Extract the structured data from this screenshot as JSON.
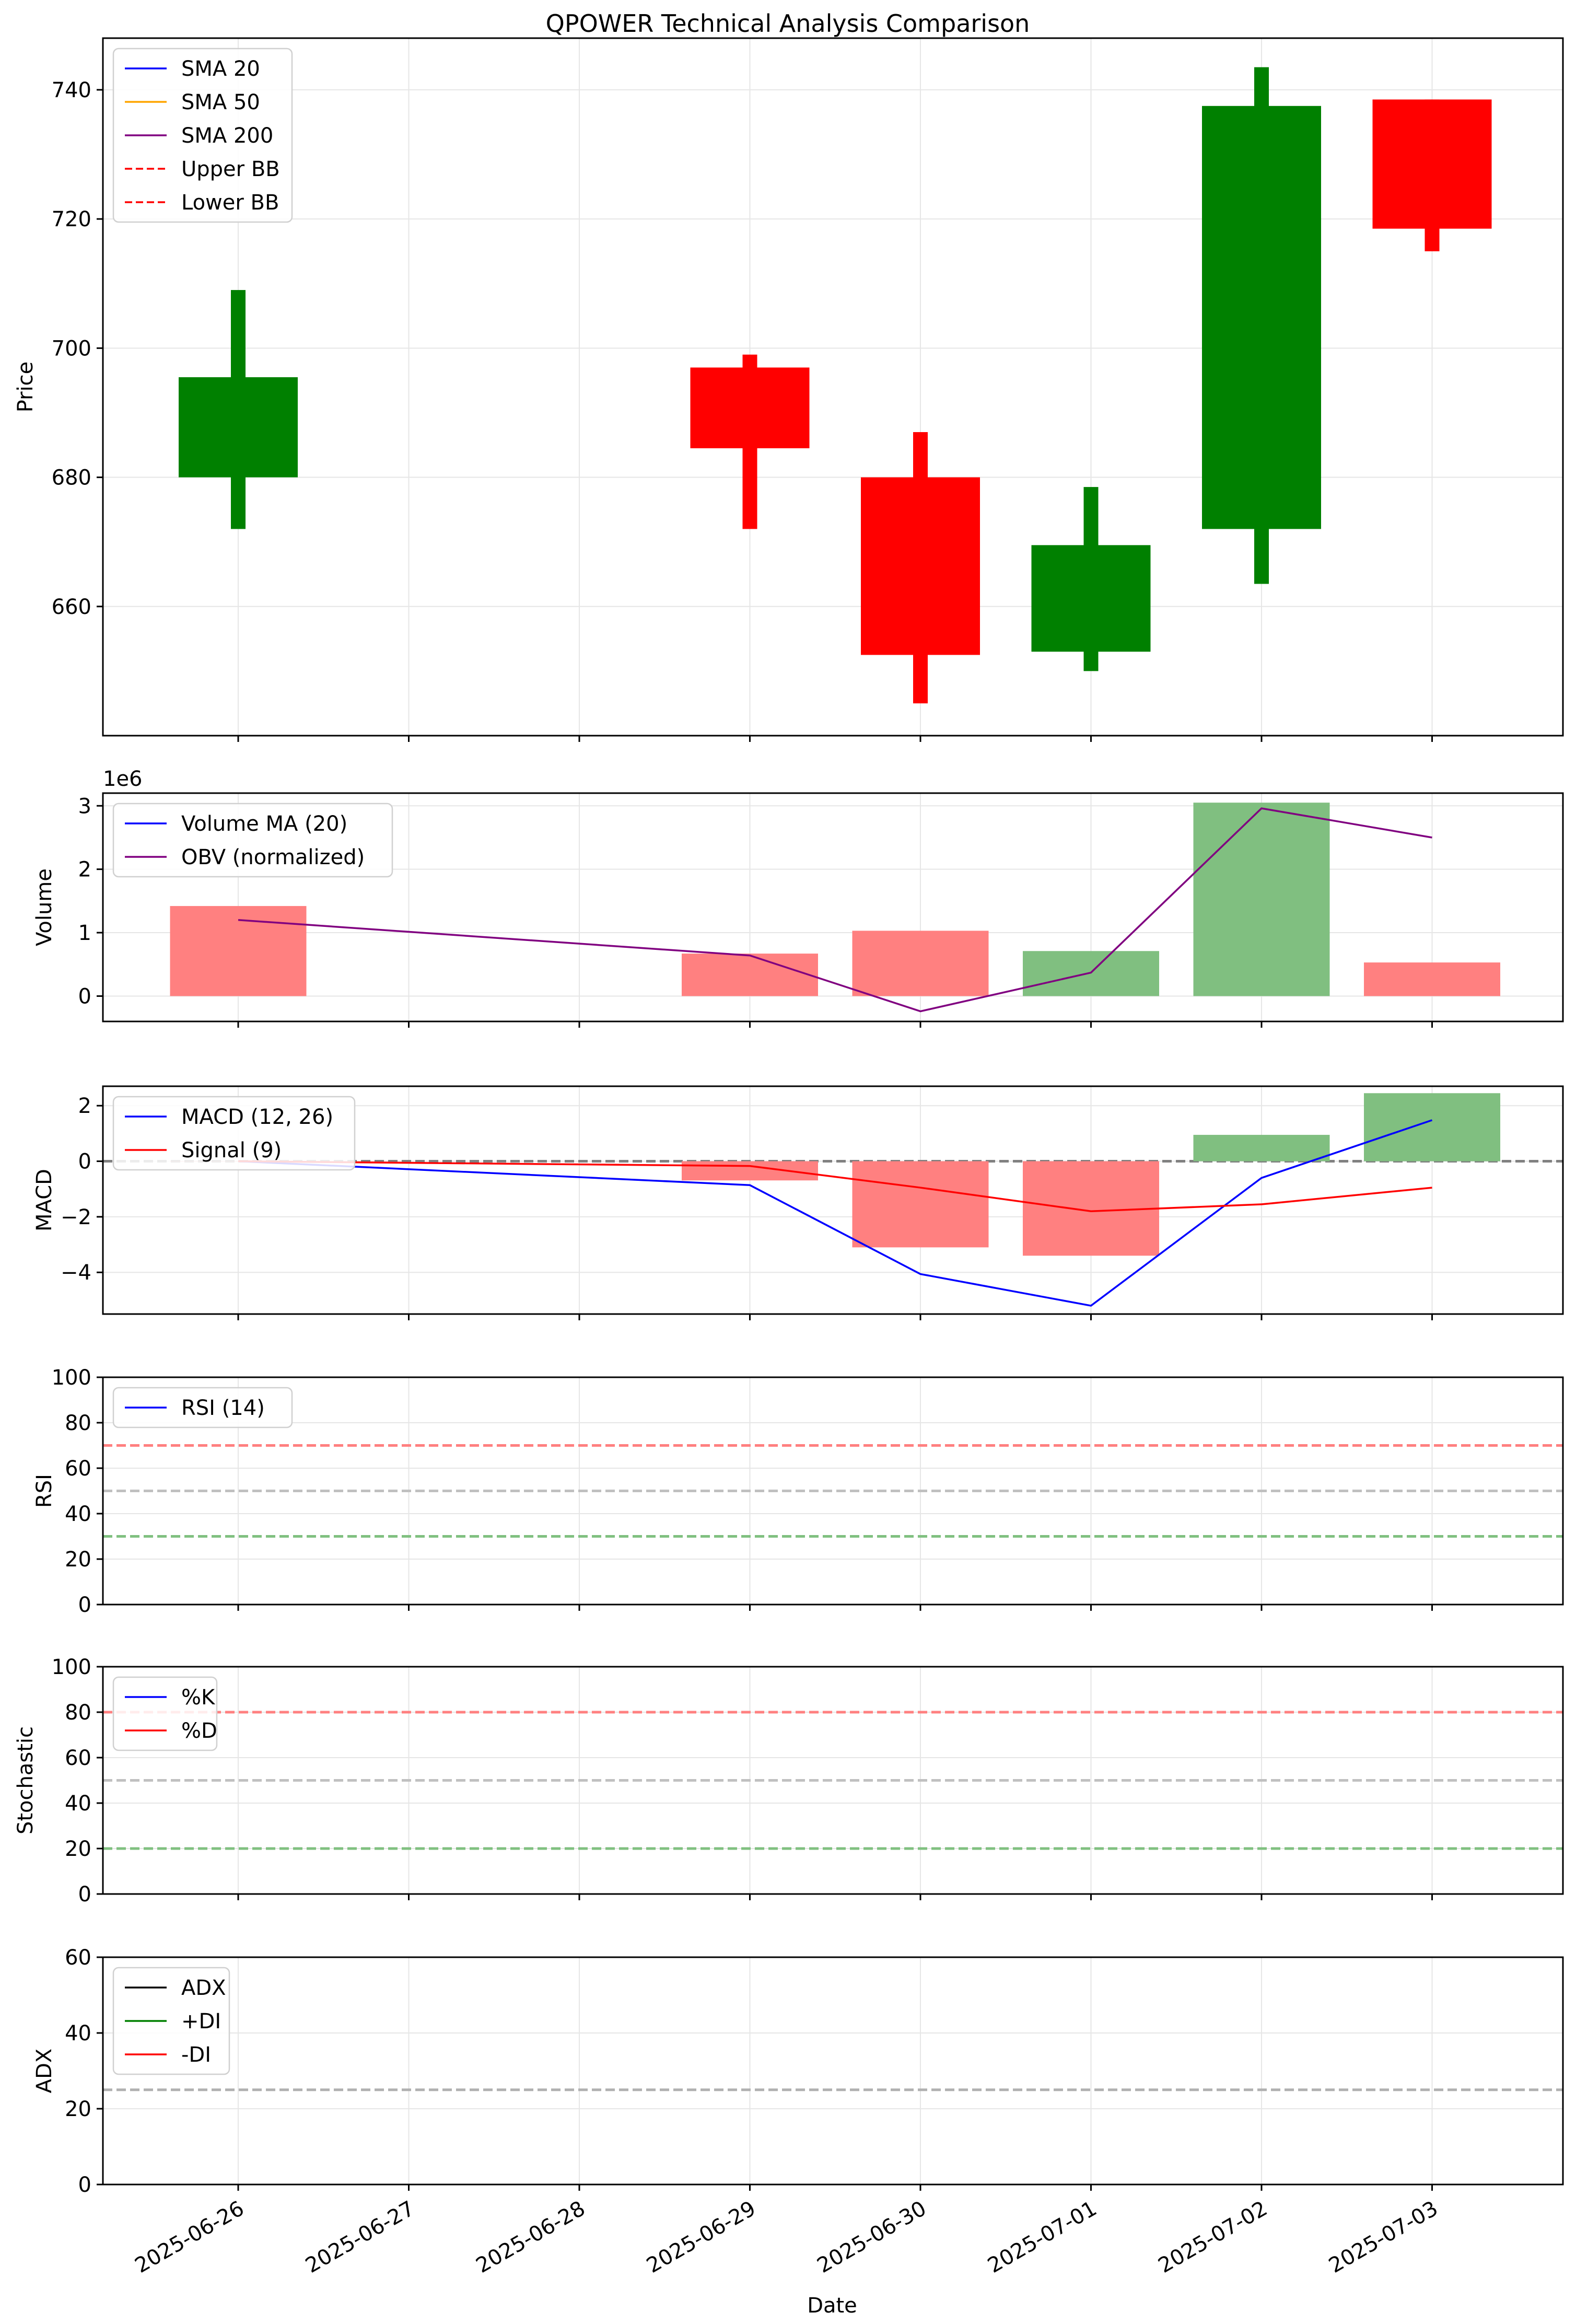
{
  "figure": {
    "title": "QPOWER Technical Analysis Comparison",
    "xlabel": "Date",
    "dates": [
      "2025-06-26",
      "2025-06-27",
      "2025-06-28",
      "2025-06-29",
      "2025-06-30",
      "2025-07-01",
      "2025-07-02",
      "2025-07-03"
    ]
  },
  "chart_data": [
    {
      "type": "candlestick",
      "ylabel": "Price",
      "ylim": [
        640,
        748
      ],
      "yticks": [
        660,
        680,
        700,
        720,
        740
      ],
      "grid": true,
      "legend_position": "top-left",
      "legend": [
        {
          "label": "SMA 20",
          "color": "#0000ff",
          "style": "solid"
        },
        {
          "label": "SMA 50",
          "color": "#ffa500",
          "style": "solid"
        },
        {
          "label": "SMA 200",
          "color": "#800080",
          "style": "solid"
        },
        {
          "label": "Upper BB",
          "color": "#ff0000",
          "style": "dashed"
        },
        {
          "label": "Lower BB",
          "color": "#ff0000",
          "style": "dashed"
        }
      ],
      "candles": [
        {
          "date": "2025-06-26",
          "open": 680,
          "high": 709,
          "low": 672,
          "close": 695.5
        },
        {
          "date": "2025-06-29",
          "open": 697,
          "high": 699,
          "low": 672,
          "close": 684.5
        },
        {
          "date": "2025-06-30",
          "open": 680,
          "high": 687,
          "low": 645,
          "close": 652.5
        },
        {
          "date": "2025-07-01",
          "open": 653,
          "high": 678.5,
          "low": 650,
          "close": 669.5
        },
        {
          "date": "2025-07-02",
          "open": 672,
          "high": 743.5,
          "low": 663.5,
          "close": 737.5
        },
        {
          "date": "2025-07-03",
          "open": 738.5,
          "high": 738.5,
          "low": 715,
          "close": 718.5
        }
      ],
      "up_color": "#008000",
      "down_color": "#ff0000"
    },
    {
      "type": "bar",
      "ylabel": "Volume",
      "offset_text": "1e6",
      "ylim": [
        -0.4,
        3.2
      ],
      "yticks": [
        0,
        1,
        2,
        3
      ],
      "grid": true,
      "legend_position": "top-left",
      "legend": [
        {
          "label": "Volume MA (20)",
          "color": "#0000ff",
          "style": "solid"
        },
        {
          "label": "OBV (normalized)",
          "color": "#800080",
          "style": "solid"
        }
      ],
      "bars": [
        {
          "date": "2025-06-26",
          "value": 1.42,
          "color": "#ff8080"
        },
        {
          "date": "2025-06-29",
          "value": 0.67,
          "color": "#ff8080"
        },
        {
          "date": "2025-06-30",
          "value": 1.03,
          "color": "#ff8080"
        },
        {
          "date": "2025-07-01",
          "value": 0.71,
          "color": "#80bf80"
        },
        {
          "date": "2025-07-02",
          "value": 3.05,
          "color": "#80bf80"
        },
        {
          "date": "2025-07-03",
          "value": 0.53,
          "color": "#ff8080"
        }
      ],
      "series": [
        {
          "name": "OBV (normalized)",
          "color": "#800080",
          "x": [
            "2025-06-26",
            "2025-06-29",
            "2025-06-30",
            "2025-07-01",
            "2025-07-02",
            "2025-07-03"
          ],
          "values": [
            1.2,
            0.64,
            -0.24,
            0.37,
            2.96,
            2.5
          ]
        }
      ]
    },
    {
      "type": "line",
      "ylabel": "MACD",
      "ylim": [
        -5.5,
        2.7
      ],
      "yticks": [
        -4,
        -2,
        0,
        2
      ],
      "grid": true,
      "legend_position": "top-left",
      "legend": [
        {
          "label": "MACD (12, 26)",
          "color": "#0000ff",
          "style": "solid"
        },
        {
          "label": "Signal (9)",
          "color": "#ff0000",
          "style": "solid"
        }
      ],
      "hlines": [
        {
          "y": 0,
          "color": "#808080",
          "style": "dashed"
        }
      ],
      "bars": [
        {
          "date": "2025-06-26",
          "value": 0.0,
          "color": "#ff8080"
        },
        {
          "date": "2025-06-29",
          "value": -0.69,
          "color": "#ff8080"
        },
        {
          "date": "2025-06-30",
          "value": -3.1,
          "color": "#ff8080"
        },
        {
          "date": "2025-07-01",
          "value": -3.4,
          "color": "#ff8080"
        },
        {
          "date": "2025-07-02",
          "value": 0.95,
          "color": "#80bf80"
        },
        {
          "date": "2025-07-03",
          "value": 2.45,
          "color": "#80bf80"
        }
      ],
      "series": [
        {
          "name": "MACD (12, 26)",
          "color": "#0000ff",
          "x": [
            "2025-06-26",
            "2025-06-29",
            "2025-06-30",
            "2025-07-01",
            "2025-07-02",
            "2025-07-03"
          ],
          "values": [
            0.0,
            -0.86,
            -4.06,
            -5.2,
            -0.6,
            1.48
          ]
        },
        {
          "name": "Signal (9)",
          "color": "#ff0000",
          "x": [
            "2025-06-26",
            "2025-06-29",
            "2025-06-30",
            "2025-07-01",
            "2025-07-02",
            "2025-07-03"
          ],
          "values": [
            0.0,
            -0.17,
            -0.95,
            -1.8,
            -1.55,
            -0.95
          ]
        }
      ]
    },
    {
      "type": "line",
      "ylabel": "RSI",
      "ylim": [
        0,
        100
      ],
      "yticks": [
        0,
        20,
        40,
        60,
        80,
        100
      ],
      "grid": true,
      "legend_position": "top-left",
      "legend": [
        {
          "label": "RSI (14)",
          "color": "#0000ff",
          "style": "solid"
        }
      ],
      "hlines": [
        {
          "y": 70,
          "color": "#ff8080",
          "style": "dashed"
        },
        {
          "y": 50,
          "color": "#c0c0c0",
          "style": "dashed"
        },
        {
          "y": 30,
          "color": "#80c080",
          "style": "dashed"
        }
      ],
      "series": []
    },
    {
      "type": "line",
      "ylabel": "Stochastic",
      "ylim": [
        0,
        100
      ],
      "yticks": [
        0,
        20,
        40,
        60,
        80,
        100
      ],
      "grid": true,
      "legend_position": "top-left",
      "legend": [
        {
          "label": "%K",
          "color": "#0000ff",
          "style": "solid"
        },
        {
          "label": "%D",
          "color": "#ff0000",
          "style": "solid"
        }
      ],
      "hlines": [
        {
          "y": 80,
          "color": "#ff8080",
          "style": "dashed"
        },
        {
          "y": 50,
          "color": "#c0c0c0",
          "style": "dashed"
        },
        {
          "y": 20,
          "color": "#80c080",
          "style": "dashed"
        }
      ],
      "series": []
    },
    {
      "type": "line",
      "ylabel": "ADX",
      "ylim": [
        0,
        60
      ],
      "yticks": [
        0,
        20,
        40,
        60
      ],
      "grid": true,
      "legend_position": "top-left",
      "legend": [
        {
          "label": "ADX",
          "color": "#000000",
          "style": "solid"
        },
        {
          "label": "+DI",
          "color": "#008000",
          "style": "solid"
        },
        {
          "label": "-DI",
          "color": "#ff0000",
          "style": "solid"
        }
      ],
      "hlines": [
        {
          "y": 25,
          "color": "#b0b0b0",
          "style": "dashed"
        }
      ],
      "series": []
    }
  ]
}
